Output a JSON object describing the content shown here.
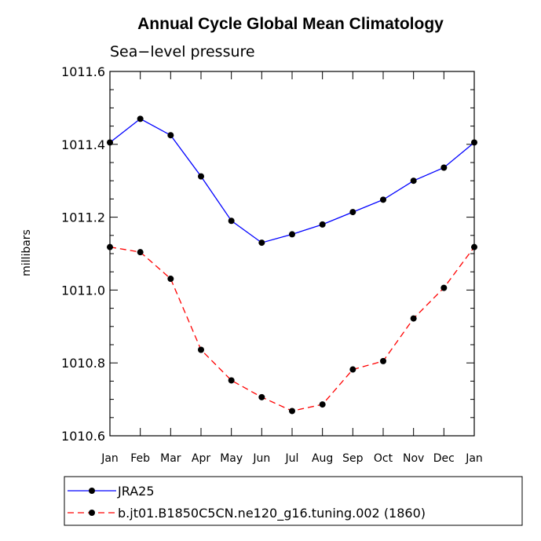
{
  "chart_data": {
    "type": "line",
    "title": "Annual Cycle Global Mean Climatology",
    "subtitle": "Sea−level pressure",
    "xlabel": "",
    "ylabel": "millibars",
    "categories": [
      "Jan",
      "Feb",
      "Mar",
      "Apr",
      "May",
      "Jun",
      "Jul",
      "Aug",
      "Sep",
      "Oct",
      "Nov",
      "Dec",
      "Jan"
    ],
    "ylim": [
      1010.6,
      1011.6
    ],
    "yticks": [
      "1010.6",
      "1010.8",
      "1011.0",
      "1011.2",
      "1011.4",
      "1011.6"
    ],
    "ytick_values": [
      1010.6,
      1010.8,
      1011.0,
      1011.2,
      1011.4,
      1011.6
    ],
    "series": [
      {
        "name": "JRA25",
        "color": "#0000ff",
        "dash": "solid",
        "marker": "filled-circle",
        "values": [
          1011.405,
          1011.47,
          1011.425,
          1011.312,
          1011.19,
          1011.13,
          1011.153,
          1011.18,
          1011.214,
          1011.248,
          1011.3,
          1011.336,
          1011.405
        ]
      },
      {
        "name": "b.jt01.B1850C5CN.ne120_g16.tuning.002 (1860)",
        "color": "#ff0000",
        "dash": "dashed",
        "marker": "filled-circle",
        "values": [
          1011.118,
          1011.104,
          1011.031,
          1010.836,
          1010.752,
          1010.706,
          1010.668,
          1010.686,
          1010.782,
          1010.805,
          1010.922,
          1011.006,
          1011.118
        ]
      }
    ],
    "grid": false,
    "legend_position": "bottom"
  }
}
